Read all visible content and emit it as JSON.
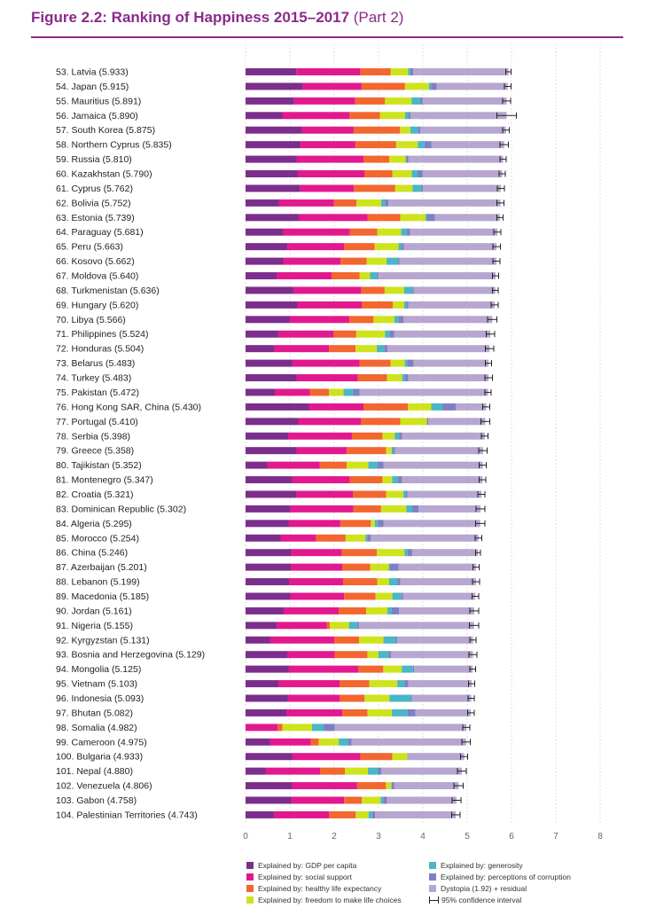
{
  "header": {
    "title_main": "Figure 2.2: Ranking of Happiness 2015–2017",
    "title_part": "(Part 2)"
  },
  "colors": {
    "gdp": "#7b2e8c",
    "social": "#e2198e",
    "health": "#f2662f",
    "freedom": "#cfe31d",
    "generosity": "#4ab6c6",
    "corruption": "#7f7fc3",
    "dystopia": "#b7a6cf",
    "ci": "#222222",
    "grid": "#bbbbbb",
    "accent": "#8b2a8b"
  },
  "chart_data": {
    "type": "bar",
    "stacked": true,
    "orientation": "horizontal",
    "title": "Figure 2.2: Ranking of Happiness 2015–2017 (Part 2)",
    "xlim": [
      0,
      8
    ],
    "xticks": [
      "0",
      "1",
      "2",
      "3",
      "4",
      "5",
      "6",
      "7",
      "8"
    ],
    "grid": true,
    "legend_position": "bottom",
    "series_order": [
      "gdp",
      "social",
      "health",
      "freedom",
      "generosity",
      "corruption",
      "dystopia"
    ],
    "legend": [
      {
        "key": "gdp",
        "label": "Explained by: GDP per capita"
      },
      {
        "key": "social",
        "label": "Explained by: social support"
      },
      {
        "key": "health",
        "label": "Explained by: healthy life expectancy"
      },
      {
        "key": "freedom",
        "label": "Explained by: freedom to make life choices"
      },
      {
        "key": "generosity",
        "label": "Explained by: generosity"
      },
      {
        "key": "corruption",
        "label": "Explained by: perceptions of corruption"
      },
      {
        "key": "dystopia",
        "label": "Dystopia (1.92) + residual"
      },
      {
        "key": "ci",
        "label": "95% confidence interval"
      }
    ],
    "countries": [
      {
        "label": "53.  Latvia (5.933)",
        "score": 5.933,
        "ci": [
          5.87,
          5.99
        ],
        "c": [
          1.15,
          1.45,
          0.68,
          0.4,
          0.05,
          0.06,
          2.16
        ]
      },
      {
        "label": "54.  Japan (5.915)",
        "score": 5.915,
        "ci": [
          5.84,
          5.99
        ],
        "c": [
          1.29,
          1.33,
          0.98,
          0.54,
          0.05,
          0.13,
          1.6
        ]
      },
      {
        "label": "55.  Mauritius (5.891)",
        "score": 5.891,
        "ci": [
          5.8,
          5.98
        ],
        "c": [
          1.09,
          1.38,
          0.67,
          0.6,
          0.19,
          0.06,
          1.89
        ]
      },
      {
        "label": "56.  Jamaica (5.890)",
        "score": 5.89,
        "ci": [
          5.67,
          6.11
        ],
        "c": [
          0.83,
          1.51,
          0.69,
          0.57,
          0.08,
          0.04,
          2.17
        ]
      },
      {
        "label": "57.  South Korea (5.875)",
        "score": 5.875,
        "ci": [
          5.8,
          5.95
        ],
        "c": [
          1.27,
          1.17,
          1.05,
          0.23,
          0.17,
          0.06,
          1.93
        ]
      },
      {
        "label": "58.  Northern Cyprus (5.835)",
        "score": 5.835,
        "ci": [
          5.74,
          5.93
        ],
        "c": [
          1.24,
          1.24,
          0.92,
          0.49,
          0.15,
          0.16,
          1.64
        ]
      },
      {
        "label": "59.  Russia (5.810)",
        "score": 5.81,
        "ci": [
          5.74,
          5.88
        ],
        "c": [
          1.15,
          1.51,
          0.58,
          0.37,
          0.02,
          0.04,
          2.14
        ]
      },
      {
        "label": "60.  Kazakhstan (5.790)",
        "score": 5.79,
        "ci": [
          5.72,
          5.86
        ],
        "c": [
          1.17,
          1.51,
          0.63,
          0.44,
          0.14,
          0.1,
          1.8
        ]
      },
      {
        "label": "61.  Cyprus (5.762)",
        "score": 5.762,
        "ci": [
          5.68,
          5.84
        ],
        "c": [
          1.23,
          1.21,
          0.93,
          0.39,
          0.19,
          0.04,
          1.76
        ]
      },
      {
        "label": "62.  Bolivia (5.752)",
        "score": 5.752,
        "ci": [
          5.67,
          5.83
        ],
        "c": [
          0.75,
          1.24,
          0.51,
          0.56,
          0.09,
          0.07,
          2.53
        ]
      },
      {
        "label": "63.  Estonia (5.739)",
        "score": 5.739,
        "ci": [
          5.67,
          5.81
        ],
        "c": [
          1.21,
          1.54,
          0.74,
          0.57,
          0.04,
          0.17,
          1.47
        ]
      },
      {
        "label": "64.  Paraguay (5.681)",
        "score": 5.681,
        "ci": [
          5.6,
          5.76
        ],
        "c": [
          0.84,
          1.51,
          0.62,
          0.54,
          0.13,
          0.07,
          1.97
        ]
      },
      {
        "label": "65.  Peru (5.663)",
        "score": 5.663,
        "ci": [
          5.58,
          5.75
        ],
        "c": [
          0.94,
          1.28,
          0.69,
          0.54,
          0.07,
          0.05,
          2.09
        ]
      },
      {
        "label": "66.  Kosovo (5.662)",
        "score": 5.662,
        "ci": [
          5.58,
          5.74
        ],
        "c": [
          0.85,
          1.29,
          0.59,
          0.45,
          0.26,
          0.03,
          2.19
        ]
      },
      {
        "label": "67.  Moldova (5.640)",
        "score": 5.64,
        "ci": [
          5.57,
          5.71
        ],
        "c": [
          0.7,
          1.24,
          0.63,
          0.24,
          0.16,
          0.02,
          2.65
        ]
      },
      {
        "label": "68.  Turkmenistan (5.636)",
        "score": 5.636,
        "ci": [
          5.57,
          5.7
        ],
        "c": [
          1.08,
          1.53,
          0.53,
          0.44,
          0.19,
          0.03,
          1.84
        ]
      },
      {
        "label": "69.  Hungary (5.620)",
        "score": 5.62,
        "ci": [
          5.54,
          5.7
        ],
        "c": [
          1.17,
          1.45,
          0.7,
          0.26,
          0.06,
          0.03,
          1.95
        ]
      },
      {
        "label": "70.  Libya (5.566)",
        "score": 5.566,
        "ci": [
          5.46,
          5.67
        ],
        "c": [
          1.0,
          1.34,
          0.55,
          0.47,
          0.09,
          0.12,
          2.0
        ]
      },
      {
        "label": "71.  Philippines (5.524)",
        "score": 5.524,
        "ci": [
          5.43,
          5.62
        ],
        "c": [
          0.74,
          1.25,
          0.51,
          0.65,
          0.1,
          0.11,
          2.17
        ]
      },
      {
        "label": "72.  Honduras (5.504)",
        "score": 5.504,
        "ci": [
          5.41,
          5.6
        ],
        "c": [
          0.64,
          1.24,
          0.6,
          0.48,
          0.17,
          0.07,
          2.3
        ]
      },
      {
        "label": "73.  Belarus (5.483)",
        "score": 5.483,
        "ci": [
          5.41,
          5.55
        ],
        "c": [
          1.05,
          1.52,
          0.7,
          0.32,
          0.06,
          0.14,
          1.69
        ]
      },
      {
        "label": "74.  Turkey (5.483)",
        "score": 5.483,
        "ci": [
          5.4,
          5.57
        ],
        "c": [
          1.15,
          1.38,
          0.66,
          0.34,
          0.06,
          0.08,
          1.81
        ]
      },
      {
        "label": "75.  Pakistan (5.472)",
        "score": 5.472,
        "ci": [
          5.4,
          5.54
        ],
        "c": [
          0.66,
          0.79,
          0.43,
          0.33,
          0.22,
          0.14,
          2.9
        ]
      },
      {
        "label": "76.  Hong Kong SAR, China (5.430)",
        "score": 5.43,
        "ci": [
          5.35,
          5.51
        ],
        "c": [
          1.43,
          1.23,
          1.0,
          0.53,
          0.26,
          0.29,
          0.69
        ]
      },
      {
        "label": "77.  Portugal (5.410)",
        "score": 5.41,
        "ci": [
          5.31,
          5.51
        ],
        "c": [
          1.19,
          1.41,
          0.89,
          0.6,
          0.01,
          0.02,
          1.29
        ]
      },
      {
        "label": "78.  Serbia (5.398)",
        "score": 5.398,
        "ci": [
          5.32,
          5.47
        ],
        "c": [
          0.96,
          1.44,
          0.69,
          0.28,
          0.1,
          0.06,
          1.87
        ]
      },
      {
        "label": "79.  Greece (5.358)",
        "score": 5.358,
        "ci": [
          5.26,
          5.45
        ],
        "c": [
          1.15,
          1.13,
          0.89,
          0.13,
          0.03,
          0.04,
          1.99
        ]
      },
      {
        "label": "80.  Tajikistan (5.352)",
        "score": 5.352,
        "ci": [
          5.27,
          5.43
        ],
        "c": [
          0.49,
          1.18,
          0.61,
          0.49,
          0.21,
          0.13,
          2.24
        ]
      },
      {
        "label": "81.  Montenegro (5.347)",
        "score": 5.347,
        "ci": [
          5.27,
          5.42
        ],
        "c": [
          1.05,
          1.3,
          0.74,
          0.22,
          0.13,
          0.09,
          1.82
        ]
      },
      {
        "label": "82.  Croatia (5.321)",
        "score": 5.321,
        "ci": [
          5.24,
          5.4
        ],
        "c": [
          1.14,
          1.28,
          0.75,
          0.39,
          0.06,
          0.03,
          1.67
        ]
      },
      {
        "label": "83.  Dominican Republic (5.302)",
        "score": 5.302,
        "ci": [
          5.2,
          5.4
        ],
        "c": [
          1.01,
          1.42,
          0.62,
          0.57,
          0.13,
          0.14,
          1.4
        ]
      },
      {
        "label": "84.  Algeria (5.295)",
        "score": 5.295,
        "ci": [
          5.19,
          5.4
        ],
        "c": [
          0.98,
          1.16,
          0.69,
          0.09,
          0.07,
          0.13,
          2.18
        ]
      },
      {
        "label": "85.  Morocco (5.254)",
        "score": 5.254,
        "ci": [
          5.18,
          5.33
        ],
        "c": [
          0.8,
          0.79,
          0.67,
          0.45,
          0.04,
          0.08,
          2.43
        ]
      },
      {
        "label": "86.  China (5.246)",
        "score": 5.246,
        "ci": [
          5.19,
          5.3
        ],
        "c": [
          1.03,
          1.14,
          0.79,
          0.62,
          0.07,
          0.11,
          1.48
        ]
      },
      {
        "label": "87.  Azerbaijan (5.201)",
        "score": 5.201,
        "ci": [
          5.13,
          5.27
        ],
        "c": [
          1.02,
          1.16,
          0.63,
          0.42,
          0.03,
          0.19,
          1.75
        ]
      },
      {
        "label": "88.  Lebanon (5.199)",
        "score": 5.199,
        "ci": [
          5.12,
          5.28
        ],
        "c": [
          0.98,
          1.22,
          0.77,
          0.27,
          0.19,
          0.06,
          1.71
        ]
      },
      {
        "label": "89.  Macedonia (5.185)",
        "score": 5.185,
        "ci": [
          5.11,
          5.26
        ],
        "c": [
          1.01,
          1.21,
          0.71,
          0.38,
          0.2,
          0.04,
          1.63
        ]
      },
      {
        "label": "90.  Jordan (5.161)",
        "score": 5.161,
        "ci": [
          5.06,
          5.26
        ],
        "c": [
          0.86,
          1.24,
          0.62,
          0.48,
          0.1,
          0.16,
          1.7
        ]
      },
      {
        "label": "91.  Nigeria (5.155)",
        "score": 5.155,
        "ci": [
          5.05,
          5.26
        ],
        "c": [
          0.7,
          1.13,
          0.07,
          0.43,
          0.19,
          0.04,
          2.59
        ]
      },
      {
        "label": "92.  Kyrgyzstan (5.131)",
        "score": 5.131,
        "ci": [
          5.06,
          5.2
        ],
        "c": [
          0.55,
          1.45,
          0.56,
          0.55,
          0.28,
          0.03,
          1.71
        ]
      },
      {
        "label": "93.  Bosnia and Herzegovina (5.129)",
        "score": 5.129,
        "ci": [
          5.04,
          5.22
        ],
        "c": [
          0.94,
          1.07,
          0.74,
          0.25,
          0.23,
          0.05,
          1.85
        ]
      },
      {
        "label": "94.  Mongolia (5.125)",
        "score": 5.125,
        "ci": [
          5.06,
          5.19
        ],
        "c": [
          0.98,
          1.57,
          0.56,
          0.42,
          0.25,
          0.03,
          1.32
        ]
      },
      {
        "label": "95.  Vietnam (5.103)",
        "score": 5.103,
        "ci": [
          5.03,
          5.17
        ],
        "c": [
          0.74,
          1.38,
          0.67,
          0.63,
          0.16,
          0.09,
          1.43
        ]
      },
      {
        "label": "96.  Indonesia (5.093)",
        "score": 5.093,
        "ci": [
          5.02,
          5.16
        ],
        "c": [
          0.96,
          1.17,
          0.56,
          0.56,
          0.5,
          0.02,
          1.33
        ]
      },
      {
        "label": "97.  Bhutan (5.082)",
        "score": 5.082,
        "ci": [
          5.01,
          5.16
        ],
        "c": [
          0.92,
          1.26,
          0.57,
          0.55,
          0.35,
          0.18,
          1.25
        ]
      },
      {
        "label": "98.  Somalia (4.982)",
        "score": 4.982,
        "ci": [
          4.9,
          5.06
        ],
        "c": [
          0.0,
          0.72,
          0.11,
          0.67,
          0.26,
          0.25,
          2.97
        ]
      },
      {
        "label": "99.  Cameroon (4.975)",
        "score": 4.975,
        "ci": [
          4.88,
          5.07
        ],
        "c": [
          0.55,
          0.92,
          0.18,
          0.45,
          0.21,
          0.08,
          2.58
        ]
      },
      {
        "label": "100. Bulgaria (4.933)",
        "score": 4.933,
        "ci": [
          4.85,
          5.01
        ],
        "c": [
          1.05,
          1.54,
          0.72,
          0.34,
          0.01,
          0.01,
          1.26
        ]
      },
      {
        "label": "101. Nepal (4.880)",
        "score": 4.88,
        "ci": [
          4.78,
          4.98
        ],
        "c": [
          0.45,
          1.23,
          0.56,
          0.52,
          0.23,
          0.07,
          1.82
        ]
      },
      {
        "label": "102. Venezuela (4.806)",
        "score": 4.806,
        "ci": [
          4.7,
          4.91
        ],
        "c": [
          1.05,
          1.47,
          0.65,
          0.12,
          0.01,
          0.06,
          1.45
        ]
      },
      {
        "label": "103. Gabon (4.758)",
        "score": 4.758,
        "ci": [
          4.66,
          4.86
        ],
        "c": [
          1.04,
          1.18,
          0.4,
          0.42,
          0.06,
          0.09,
          1.56
        ]
      },
      {
        "label": "104. Palestinian Territories (4.743)",
        "score": 4.743,
        "ci": [
          4.65,
          4.84
        ],
        "c": [
          0.64,
          1.25,
          0.6,
          0.29,
          0.08,
          0.07,
          1.82
        ]
      }
    ]
  }
}
